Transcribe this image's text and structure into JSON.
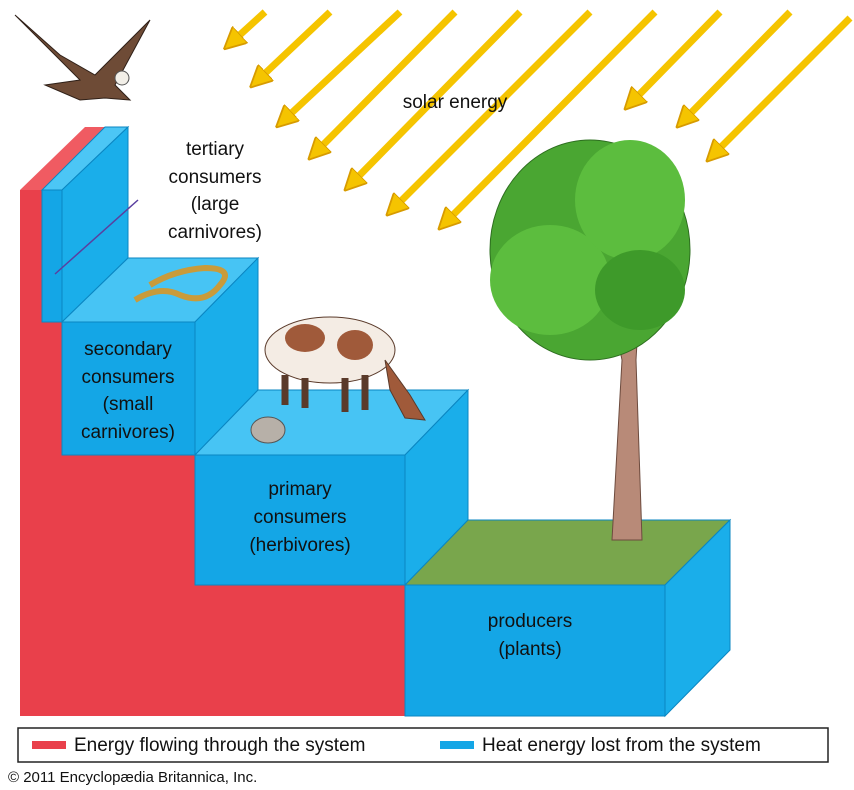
{
  "solar_label": "solar energy",
  "levels": [
    {
      "lines": [
        "tertiary",
        "consumers",
        "(large",
        "carnivores)"
      ]
    },
    {
      "lines": [
        "secondary",
        "consumers",
        "(small",
        "carnivores)"
      ]
    },
    {
      "lines": [
        "primary",
        "consumers",
        "(herbivores)"
      ]
    },
    {
      "lines": [
        "producers",
        "(plants)"
      ]
    }
  ],
  "legend": [
    "Energy flowing through the system",
    "Heat energy lost from the system"
  ],
  "copyright": "© 2011 Encyclopædia Britannica, Inc."
}
